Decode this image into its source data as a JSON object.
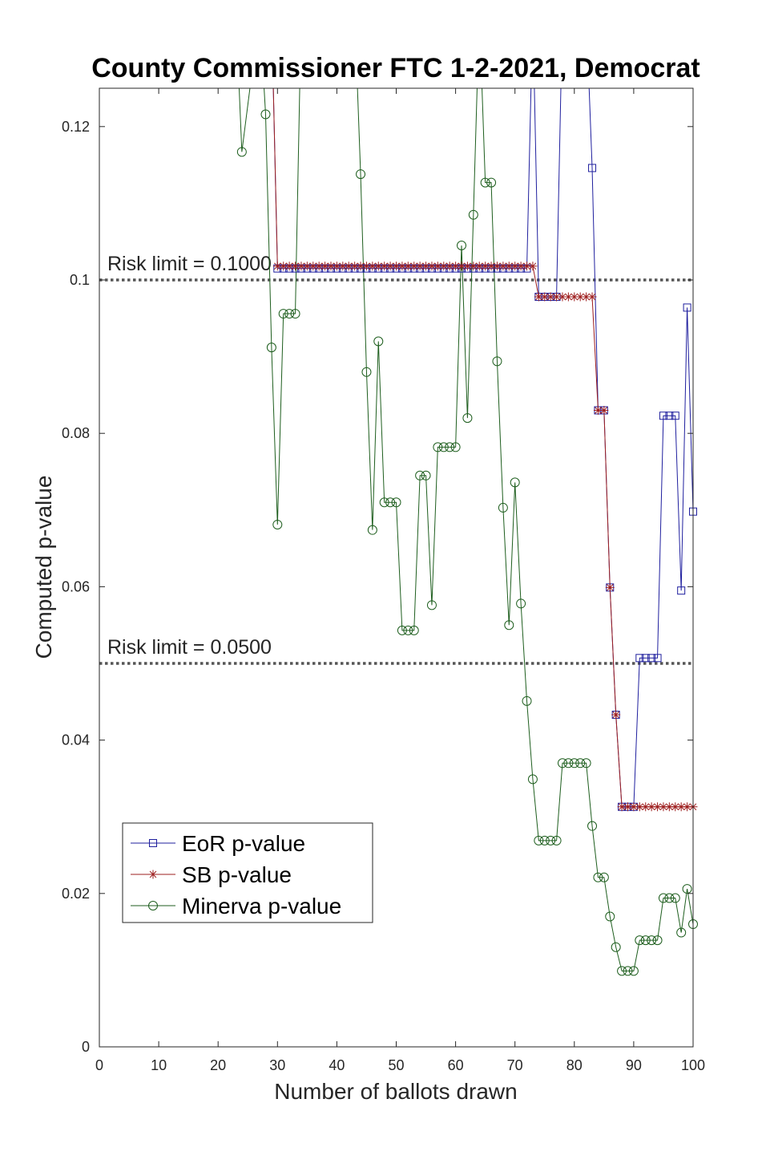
{
  "chart_data": {
    "type": "line",
    "title": "County Commissioner FTC 1-2-2021, Democrat",
    "xlabel": "Number of ballots drawn",
    "ylabel": "Computed p-value",
    "xlim": [
      0,
      100
    ],
    "ylim": [
      0,
      0.125
    ],
    "xticks": [
      0,
      10,
      20,
      30,
      40,
      50,
      60,
      70,
      80,
      90,
      100
    ],
    "xtick_labels": [
      "0",
      "10",
      "20",
      "30",
      "40",
      "50",
      "60",
      "70",
      "80",
      "90",
      "100"
    ],
    "yticks": [
      0,
      0.02,
      0.04,
      0.06,
      0.08,
      0.1,
      0.12
    ],
    "ytick_labels": [
      "0",
      "0.02",
      "0.04",
      "0.06",
      "0.08",
      "0.1",
      "0.12"
    ],
    "grid": false,
    "legend_position": "bottom-left",
    "risk_limits": [
      {
        "value": 0.1,
        "label": "Risk limit = 0.1000"
      },
      {
        "value": 0.05,
        "label": "Risk limit = 0.0500"
      }
    ],
    "series": [
      {
        "name": "EoR p-value",
        "marker": "square",
        "color": "#1f1f9e",
        "x": [
          29,
          30,
          31,
          32,
          33,
          34,
          35,
          36,
          37,
          38,
          39,
          40,
          41,
          42,
          43,
          44,
          45,
          46,
          47,
          48,
          49,
          50,
          51,
          52,
          53,
          54,
          55,
          56,
          57,
          58,
          59,
          60,
          61,
          62,
          63,
          64,
          65,
          66,
          67,
          68,
          69,
          70,
          71,
          72,
          73,
          74,
          75,
          76,
          77,
          78,
          82,
          83,
          84,
          85,
          86,
          87,
          88,
          89,
          90,
          91,
          92,
          93,
          94,
          95,
          96,
          97,
          98,
          99,
          100
        ],
        "y": [
          0.135,
          0.1015,
          0.1015,
          0.1015,
          0.1015,
          0.1015,
          0.1015,
          0.1015,
          0.1015,
          0.1015,
          0.1015,
          0.1015,
          0.1015,
          0.1015,
          0.1015,
          0.1015,
          0.1015,
          0.1015,
          0.1015,
          0.1015,
          0.1015,
          0.1015,
          0.1015,
          0.1015,
          0.1015,
          0.1015,
          0.1015,
          0.1015,
          0.1015,
          0.1015,
          0.1015,
          0.1015,
          0.1015,
          0.1015,
          0.1015,
          0.1015,
          0.1015,
          0.1015,
          0.1015,
          0.1015,
          0.1015,
          0.1015,
          0.1015,
          0.1015,
          0.135,
          0.0978,
          0.0978,
          0.0978,
          0.0978,
          0.135,
          0.135,
          0.1146,
          0.083,
          0.083,
          0.0599,
          0.0433,
          0.0313,
          0.0313,
          0.0313,
          0.0507,
          0.0507,
          0.0507,
          0.0507,
          0.0823,
          0.0823,
          0.0823,
          0.0595,
          0.0964,
          0.0698
        ]
      },
      {
        "name": "SB p-value",
        "marker": "asterisk",
        "color": "#9e1f1f",
        "x": [
          29,
          30,
          31,
          32,
          33,
          34,
          35,
          36,
          37,
          38,
          39,
          40,
          41,
          42,
          43,
          44,
          45,
          46,
          47,
          48,
          49,
          50,
          51,
          52,
          53,
          54,
          55,
          56,
          57,
          58,
          59,
          60,
          61,
          62,
          63,
          64,
          65,
          66,
          67,
          68,
          69,
          70,
          71,
          72,
          73,
          74,
          75,
          76,
          77,
          78,
          79,
          80,
          81,
          82,
          83,
          84,
          85,
          86,
          87,
          88,
          89,
          90,
          91,
          92,
          93,
          94,
          95,
          96,
          97,
          98,
          99,
          100
        ],
        "y": [
          0.135,
          0.1018,
          0.1018,
          0.1018,
          0.1018,
          0.1018,
          0.1018,
          0.1018,
          0.1018,
          0.1018,
          0.1018,
          0.1018,
          0.1018,
          0.1018,
          0.1018,
          0.1018,
          0.1018,
          0.1018,
          0.1018,
          0.1018,
          0.1018,
          0.1018,
          0.1018,
          0.1018,
          0.1018,
          0.1018,
          0.1018,
          0.1018,
          0.1018,
          0.1018,
          0.1018,
          0.1018,
          0.1018,
          0.1018,
          0.1018,
          0.1018,
          0.1018,
          0.1018,
          0.1018,
          0.1018,
          0.1018,
          0.1018,
          0.1018,
          0.1018,
          0.1018,
          0.0978,
          0.0978,
          0.0978,
          0.0978,
          0.0978,
          0.0978,
          0.0978,
          0.0978,
          0.0978,
          0.0978,
          0.083,
          0.083,
          0.0599,
          0.0433,
          0.0313,
          0.0313,
          0.0313,
          0.0313,
          0.0313,
          0.0313,
          0.0313,
          0.0313,
          0.0313,
          0.0313,
          0.0313,
          0.0313,
          0.0313
        ]
      },
      {
        "name": "Minerva p-value",
        "marker": "circle",
        "color": "#1e5e1e",
        "x": [
          23,
          24,
          27,
          28,
          29,
          30,
          31,
          32,
          33,
          34,
          43,
          44,
          45,
          46,
          47,
          48,
          49,
          50,
          51,
          52,
          53,
          54,
          55,
          56,
          57,
          58,
          59,
          60,
          61,
          62,
          63,
          64,
          65,
          66,
          67,
          68,
          69,
          70,
          71,
          72,
          73,
          74,
          75,
          76,
          77,
          78,
          79,
          80,
          81,
          82,
          83,
          84,
          85,
          86,
          87,
          88,
          89,
          90,
          91,
          92,
          93,
          94,
          95,
          96,
          97,
          98,
          99,
          100
        ],
        "y": [
          0.135,
          0.1167,
          0.135,
          0.1216,
          0.0912,
          0.0681,
          0.0956,
          0.0956,
          0.0956,
          0.135,
          0.135,
          0.1138,
          0.088,
          0.0674,
          0.092,
          0.071,
          0.071,
          0.071,
          0.0543,
          0.0543,
          0.0543,
          0.0745,
          0.0745,
          0.0576,
          0.0782,
          0.0782,
          0.0782,
          0.0782,
          0.1045,
          0.082,
          0.1085,
          0.135,
          0.1127,
          0.1127,
          0.0894,
          0.0703,
          0.055,
          0.0736,
          0.0578,
          0.0451,
          0.0349,
          0.0269,
          0.0269,
          0.0269,
          0.0269,
          0.037,
          0.037,
          0.037,
          0.037,
          0.037,
          0.0288,
          0.0221,
          0.0221,
          0.017,
          0.013,
          0.0099,
          0.0099,
          0.0099,
          0.0139,
          0.0139,
          0.0139,
          0.0139,
          0.0194,
          0.0194,
          0.0194,
          0.0149,
          0.0206,
          0.016
        ]
      }
    ]
  }
}
